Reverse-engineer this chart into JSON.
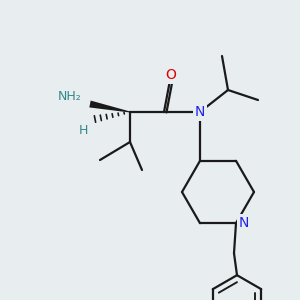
{
  "bg_color": "#e8edf0",
  "bond_color": "#1a1a1a",
  "bond_width": 1.6,
  "figsize": [
    3.0,
    3.0
  ],
  "dpi": 100,
  "colors": {
    "O": "#dd0000",
    "N": "#2222ee",
    "NH2": "#338888",
    "H": "#338888",
    "C": "#1a1a1a"
  }
}
